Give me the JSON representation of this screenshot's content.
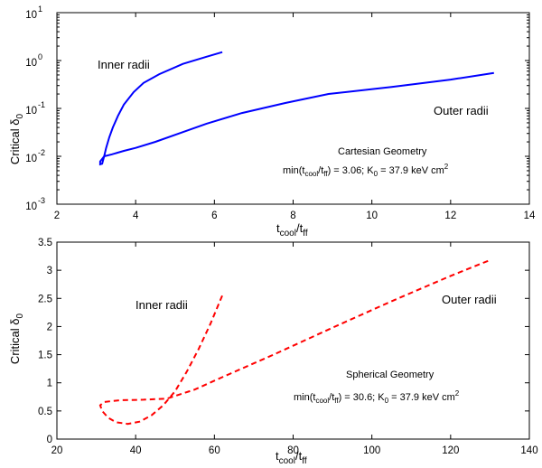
{
  "chart_data": [
    {
      "type": "line",
      "yscale": "log",
      "xlim": [
        2,
        14
      ],
      "ylim": [
        0.001,
        10
      ],
      "grid": false,
      "xticks": [
        "2",
        "4",
        "6",
        "8",
        "10",
        "12",
        "14"
      ],
      "yticks": [
        {
          "base": "10",
          "exp": "-3"
        },
        {
          "base": "10",
          "exp": "-2"
        },
        {
          "base": "10",
          "exp": "-1"
        },
        {
          "base": "10",
          "exp": "0"
        },
        {
          "base": "10",
          "exp": "1"
        }
      ],
      "xlabel": {
        "main": "t",
        "sub1": "cool",
        "mid": "/t",
        "sub2": "ff"
      },
      "ylabel": {
        "main": "Critical δ",
        "sub": "0"
      },
      "labels": {
        "inner": "Inner radii",
        "outer": "Outer radii"
      },
      "geometry": "Cartesian Geometry",
      "params": {
        "p1": "min(t",
        "p1sub": "cool",
        "p2": "/t",
        "p2sub": "ff",
        "p3": ") = 3.06; K",
        "p3sub": "0",
        "p4": " = 37.9 keV cm",
        "p4sup": "2"
      },
      "series": [
        {
          "color": "#0000ff",
          "style": "solid",
          "x": [
            6.2,
            5.8,
            5.2,
            4.6,
            4.2,
            3.95,
            3.7,
            3.55,
            3.42,
            3.33,
            3.25,
            3.2,
            3.15,
            3.1,
            3.1,
            3.2,
            3.4,
            3.7,
            4.0,
            4.5,
            5.2,
            5.8,
            6.7,
            7.8,
            8.9,
            10.5,
            12.0,
            13.1
          ],
          "y": [
            1.5,
            1.2,
            0.85,
            0.52,
            0.34,
            0.22,
            0.12,
            0.07,
            0.04,
            0.025,
            0.015,
            0.01,
            0.007,
            0.0068,
            0.0078,
            0.01,
            0.011,
            0.013,
            0.015,
            0.02,
            0.032,
            0.048,
            0.08,
            0.13,
            0.2,
            0.28,
            0.4,
            0.55
          ]
        }
      ]
    },
    {
      "type": "line",
      "yscale": "linear",
      "xlim": [
        20,
        140
      ],
      "ylim": [
        0,
        3.5
      ],
      "grid": false,
      "xticks": [
        "20",
        "40",
        "60",
        "80",
        "100",
        "120",
        "140"
      ],
      "yticks": [
        "0",
        "0.5",
        "1",
        "1.5",
        "2",
        "2.5",
        "3",
        "3.5"
      ],
      "xlabel": {
        "main": "t",
        "sub1": "cool",
        "mid": "/t",
        "sub2": "ff"
      },
      "ylabel": {
        "main": "Critical δ",
        "sub": "0"
      },
      "labels": {
        "inner": "Inner radii",
        "outer": "Outer radii"
      },
      "geometry": "Spherical Geometry",
      "params": {
        "p1": "min(t",
        "p1sub": "cool",
        "p2": "/t",
        "p2sub": "ff",
        "p3": ") = 30.6; K",
        "p3sub": "0",
        "p4": " = 37.9 keV cm",
        "p4sup": "2"
      },
      "series": [
        {
          "color": "#ff0000",
          "style": "dashed",
          "x": [
            62,
            59,
            56,
            53,
            50,
            47,
            44,
            41,
            38,
            35,
            33,
            31.5,
            31,
            32,
            36,
            42,
            48,
            55,
            62,
            75,
            90,
            105,
            120,
            130
          ],
          "y": [
            2.55,
            2.05,
            1.6,
            1.2,
            0.85,
            0.6,
            0.42,
            0.31,
            0.27,
            0.3,
            0.38,
            0.5,
            0.6,
            0.66,
            0.69,
            0.7,
            0.72,
            0.88,
            1.1,
            1.5,
            1.98,
            2.45,
            2.9,
            3.18
          ]
        }
      ]
    }
  ]
}
